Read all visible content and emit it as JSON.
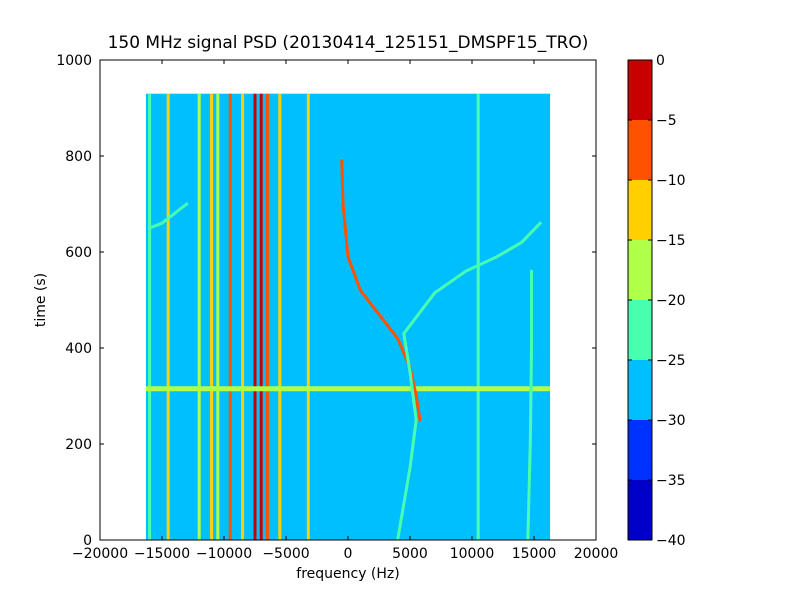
{
  "chart_data": {
    "type": "heatmap",
    "title": "150 MHz signal PSD (20130414_125151_DMSPF15_TRO)",
    "xlabel": "frequency (Hz)",
    "ylabel": "time (s)",
    "xlim": [
      -20000,
      20000
    ],
    "ylim": [
      0,
      1000
    ],
    "x_ticks": [
      -20000,
      -15000,
      -10000,
      -5000,
      0,
      5000,
      10000,
      15000,
      20000
    ],
    "x_tick_labels": [
      "−20000",
      "−15000",
      "−10000",
      "−5000",
      "0",
      "5000",
      "10000",
      "15000",
      "20000"
    ],
    "y_ticks": [
      0,
      200,
      400,
      600,
      800,
      1000
    ],
    "y_tick_labels": [
      "0",
      "200",
      "400",
      "600",
      "800",
      "1000"
    ],
    "data_extent": {
      "freq_range": [
        -16300,
        16300
      ],
      "time_range": [
        0,
        930
      ]
    },
    "background_level": "-30 to -25",
    "grid": false,
    "colorbar": {
      "levels": [
        -40,
        -35,
        -30,
        -25,
        -20,
        -15,
        -10,
        -5,
        0
      ],
      "level_labels": [
        "−40",
        "−35",
        "−30",
        "−25",
        "−20",
        "−15",
        "−10",
        "−5",
        "0"
      ],
      "colors": [
        "#0000c8",
        "#0032ff",
        "#00bfff",
        "#48ffb0",
        "#b0ff48",
        "#ffd000",
        "#ff5200",
        "#c80000"
      ]
    },
    "features": [
      {
        "kind": "vertical-line",
        "freq": -16000,
        "level": "-25 to -20"
      },
      {
        "kind": "vertical-line",
        "freq": -14500,
        "level": "-15 to -10"
      },
      {
        "kind": "vertical-line",
        "freq": -12000,
        "level": "-20 to -15"
      },
      {
        "kind": "vertical-line",
        "freq": -11000,
        "level": "-15 to -10"
      },
      {
        "kind": "vertical-line",
        "freq": -10500,
        "level": "-20 to -15"
      },
      {
        "kind": "vertical-line",
        "freq": -9500,
        "level": "-10 to -5"
      },
      {
        "kind": "vertical-line",
        "freq": -8500,
        "level": "-15 to -10"
      },
      {
        "kind": "vertical-line",
        "freq": -7500,
        "level": "-5 to 0"
      },
      {
        "kind": "vertical-line",
        "freq": -7000,
        "level": "-5 to 0"
      },
      {
        "kind": "vertical-line",
        "freq": -6500,
        "level": "-10 to -5"
      },
      {
        "kind": "vertical-line",
        "freq": -5500,
        "level": "-15 to -10"
      },
      {
        "kind": "vertical-line",
        "freq": -3200,
        "level": "-15 to -10"
      },
      {
        "kind": "vertical-line",
        "freq": 10500,
        "level": "-25 to -20"
      },
      {
        "kind": "horizontal-line",
        "time": 315,
        "level": "-20 to -15"
      },
      {
        "kind": "doppler-curve",
        "level": "-10 to -5",
        "points": [
          [
            -500,
            790
          ],
          [
            -400,
            700
          ],
          [
            0,
            590
          ],
          [
            1000,
            520
          ],
          [
            2500,
            470
          ],
          [
            4000,
            420
          ],
          [
            5000,
            360
          ],
          [
            5500,
            300
          ],
          [
            5800,
            250
          ]
        ]
      },
      {
        "kind": "doppler-curve",
        "level": "-25 to -20",
        "points": [
          [
            4500,
            430
          ],
          [
            7000,
            515
          ],
          [
            9500,
            560
          ],
          [
            12000,
            590
          ],
          [
            14000,
            620
          ],
          [
            15500,
            660
          ]
        ]
      },
      {
        "kind": "doppler-curve",
        "level": "-25 to -20",
        "points": [
          [
            4000,
            0
          ],
          [
            5000,
            150
          ],
          [
            5500,
            250
          ],
          [
            5000,
            350
          ],
          [
            4500,
            430
          ]
        ]
      },
      {
        "kind": "doppler-curve",
        "level": "-25 to -20",
        "points": [
          [
            14500,
            0
          ],
          [
            14700,
            200
          ],
          [
            14800,
            400
          ],
          [
            14800,
            560
          ]
        ]
      },
      {
        "kind": "doppler-curve",
        "level": "-25 to -20",
        "points": [
          [
            -16000,
            650
          ],
          [
            -15000,
            660
          ],
          [
            -14000,
            680
          ],
          [
            -13000,
            700
          ]
        ]
      }
    ]
  }
}
